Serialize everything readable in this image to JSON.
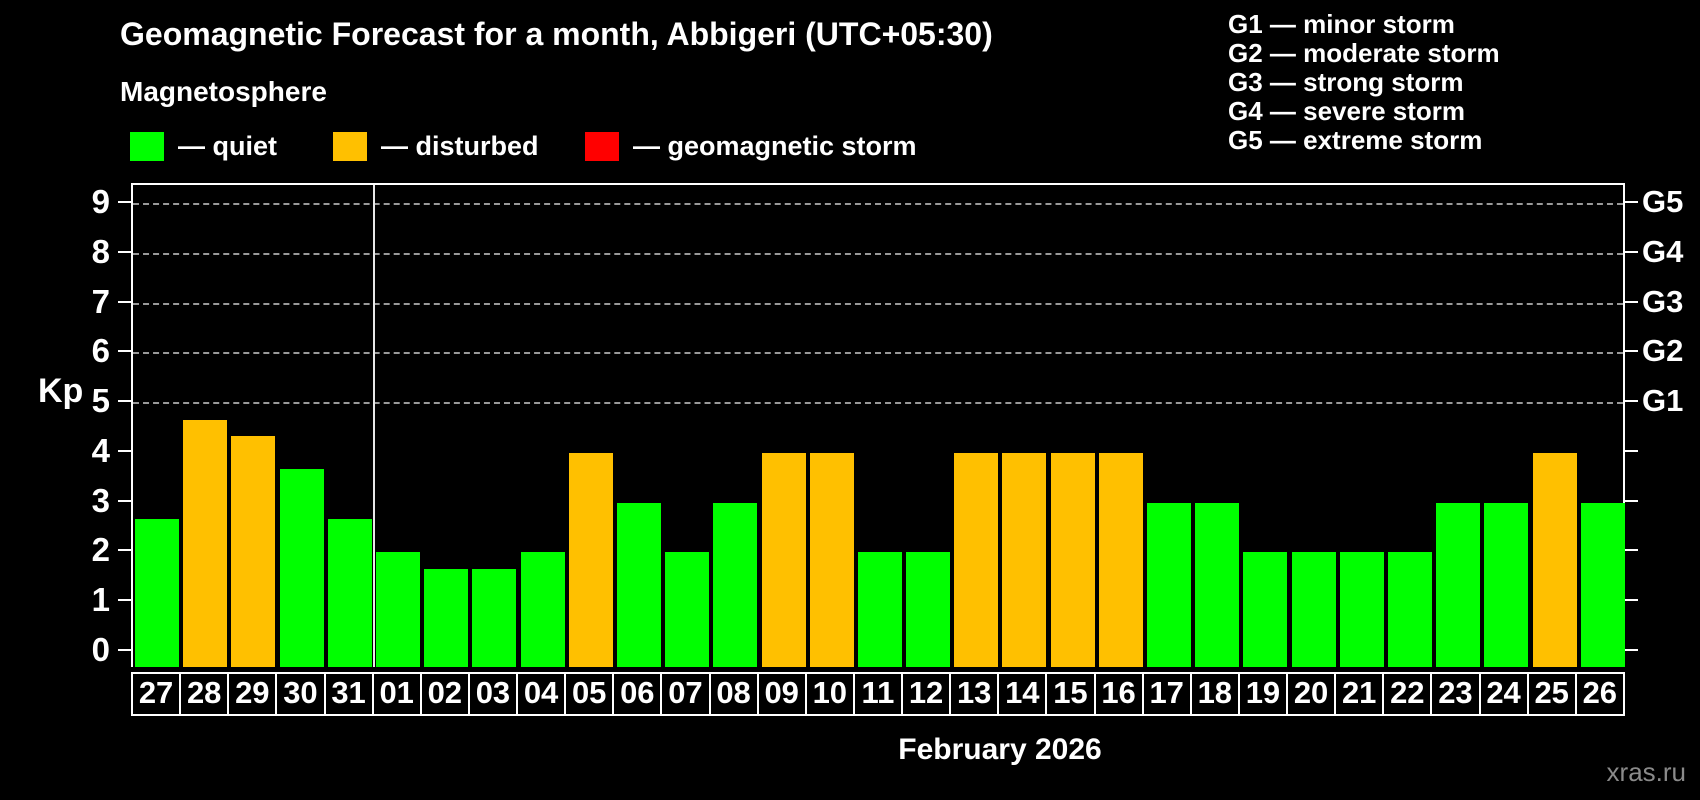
{
  "header": {
    "title": "Geomagnetic Forecast for a month, Abbigeri (UTC+05:30)",
    "subtitle": "Magnetosphere"
  },
  "legend": {
    "items": [
      {
        "name": "quiet",
        "label": "— quiet",
        "color": "#00ff00"
      },
      {
        "name": "disturbed",
        "label": "— disturbed",
        "color": "#ffc000"
      },
      {
        "name": "geomagnetic-storm",
        "label": "— geomagnetic storm",
        "color": "#ff0000"
      }
    ]
  },
  "g_scale_legend": {
    "lines": [
      "G1 — minor storm",
      "G2 — moderate storm",
      "G3 — strong storm",
      "G4 — severe storm",
      "G5 — extreme storm"
    ]
  },
  "chart_data": {
    "type": "bar",
    "title": "Geomagnetic Forecast for a month, Abbigeri (UTC+05:30)",
    "ylabel": "Kp",
    "xlabel": "February 2026",
    "categories": [
      "27",
      "28",
      "29",
      "30",
      "31",
      "01",
      "02",
      "03",
      "04",
      "05",
      "06",
      "07",
      "08",
      "09",
      "10",
      "11",
      "12",
      "13",
      "14",
      "15",
      "16",
      "17",
      "18",
      "19",
      "20",
      "21",
      "22",
      "23",
      "24",
      "25",
      "26"
    ],
    "values": [
      2.67,
      4.67,
      4.33,
      3.67,
      2.67,
      2,
      1.67,
      1.67,
      2,
      4,
      3,
      2,
      3,
      4,
      4,
      2,
      2,
      4,
      4,
      4,
      4,
      3,
      3,
      2,
      2,
      2,
      2,
      3,
      3,
      4,
      3
    ],
    "statuses": [
      "quiet",
      "disturbed",
      "disturbed",
      "quiet",
      "quiet",
      "quiet",
      "quiet",
      "quiet",
      "quiet",
      "disturbed",
      "quiet",
      "quiet",
      "quiet",
      "disturbed",
      "disturbed",
      "quiet",
      "quiet",
      "disturbed",
      "disturbed",
      "disturbed",
      "disturbed",
      "quiet",
      "quiet",
      "quiet",
      "quiet",
      "quiet",
      "quiet",
      "quiet",
      "quiet",
      "disturbed",
      "quiet"
    ],
    "status_colors": {
      "quiet": "#00ff00",
      "disturbed": "#ffc000",
      "storm": "#ff0000"
    },
    "y_ticks": [
      0,
      1,
      2,
      3,
      4,
      5,
      6,
      7,
      8,
      9
    ],
    "ylim": [
      -0.34,
      9.4
    ],
    "gridlines_at": [
      5,
      6,
      7,
      8,
      9
    ],
    "grid_style": "dashed",
    "right_axis_labels": [
      {
        "label": "G5",
        "kp": 9
      },
      {
        "label": "G4",
        "kp": 8
      },
      {
        "label": "G3",
        "kp": 7
      },
      {
        "label": "G2",
        "kp": 6
      },
      {
        "label": "G1",
        "kp": 5
      }
    ],
    "month_separator_after_index": 4,
    "legend_position": "top-left"
  },
  "footer": {
    "xaxis_title": "February 2026",
    "watermark": "xras.ru"
  }
}
